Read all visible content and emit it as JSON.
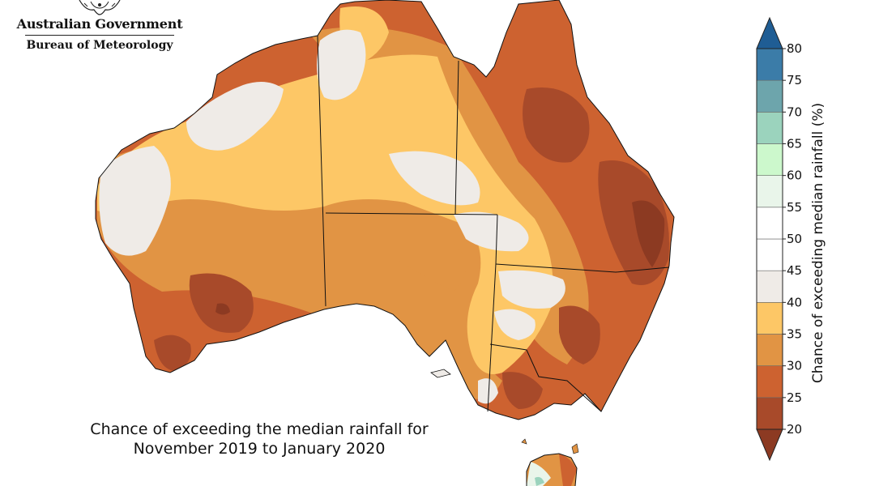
{
  "header": {
    "government": "Australian Government",
    "bureau": "Bureau of Meteorology"
  },
  "map": {
    "caption_line1": "Chance of exceeding the median rainfall for",
    "caption_line2": "November 2019 to January 2020"
  },
  "legend": {
    "title": "Chance of exceeding median rainfall (%)",
    "ticks": [
      "20",
      "25",
      "30",
      "35",
      "40",
      "45",
      "50",
      "55",
      "60",
      "65",
      "70",
      "75",
      "80"
    ],
    "bins": [
      {
        "range": "20-25",
        "color": "#a84a2a"
      },
      {
        "range": "25-30",
        "color": "#cd6230"
      },
      {
        "range": "30-35",
        "color": "#e19444"
      },
      {
        "range": "35-40",
        "color": "#fdc766"
      },
      {
        "range": "40-45",
        "color": "#efebe7"
      },
      {
        "range": "45-50",
        "color": "#ffffff"
      },
      {
        "range": "50-55",
        "color": "#ffffff"
      },
      {
        "range": "55-60",
        "color": "#e9f5ea"
      },
      {
        "range": "60-65",
        "color": "#ccf8cc"
      },
      {
        "range": "65-70",
        "color": "#9bd3bd"
      },
      {
        "range": "70-75",
        "color": "#6da5ac"
      },
      {
        "range": "75-80",
        "color": "#3b7ca8"
      }
    ],
    "below_color": "#8c3a22",
    "above_color": "#1f5d94"
  }
}
